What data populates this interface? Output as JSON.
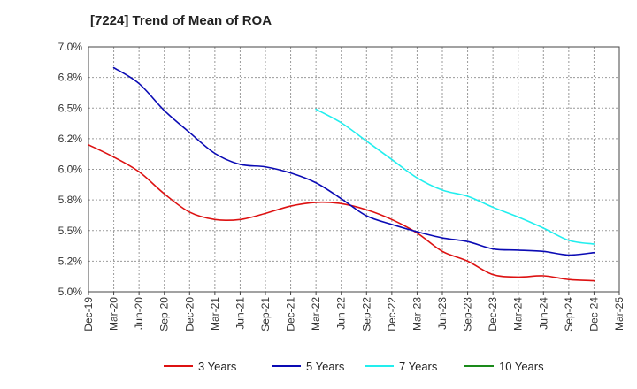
{
  "chart_data": {
    "type": "line",
    "title": "[7224]  Trend of Mean of ROA",
    "xlabel": "",
    "ylabel": "",
    "ylim": [
      5.0,
      7.0
    ],
    "y_ticks": [
      5.0,
      5.25,
      5.5,
      5.75,
      6.0,
      6.25,
      6.5,
      6.75,
      7.0
    ],
    "y_tick_labels": [
      "5.0%",
      "5.2%",
      "5.5%",
      "5.8%",
      "6.0%",
      "6.2%",
      "6.5%",
      "6.8%",
      "7.0%"
    ],
    "x_tick_labels": [
      "Dec-19",
      "Mar-20",
      "Jun-20",
      "Sep-20",
      "Dec-20",
      "Mar-21",
      "Jun-21",
      "Sep-21",
      "Dec-21",
      "Mar-22",
      "Jun-22",
      "Sep-22",
      "Dec-22",
      "Mar-23",
      "Jun-23",
      "Sep-23",
      "Dec-23",
      "Mar-24",
      "Jun-24",
      "Sep-24",
      "Dec-24",
      "Mar-25"
    ],
    "grid": true,
    "legend_position": "bottom",
    "series": [
      {
        "name": "3 Years",
        "color": "#dd1111",
        "start_index": 0,
        "values": [
          6.2,
          6.1,
          5.98,
          5.8,
          5.65,
          5.59,
          5.59,
          5.64,
          5.7,
          5.73,
          5.72,
          5.67,
          5.59,
          5.48,
          5.33,
          5.25,
          5.14,
          5.12,
          5.13,
          5.1,
          5.09
        ]
      },
      {
        "name": "5 Years",
        "color": "#0a0ab4",
        "start_index": 1,
        "values": [
          6.83,
          6.7,
          6.48,
          6.3,
          6.13,
          6.04,
          6.02,
          5.97,
          5.89,
          5.76,
          5.62,
          5.55,
          5.49,
          5.44,
          5.41,
          5.35,
          5.34,
          5.33,
          5.3,
          5.32
        ]
      },
      {
        "name": "7 Years",
        "color": "#22eeee",
        "start_index": 9,
        "values": [
          6.49,
          6.38,
          6.23,
          6.08,
          5.93,
          5.83,
          5.78,
          5.69,
          5.61,
          5.52,
          5.42,
          5.39
        ]
      },
      {
        "name": "10 Years",
        "color": "#1a8a1a",
        "start_index": 0,
        "values": []
      }
    ]
  }
}
